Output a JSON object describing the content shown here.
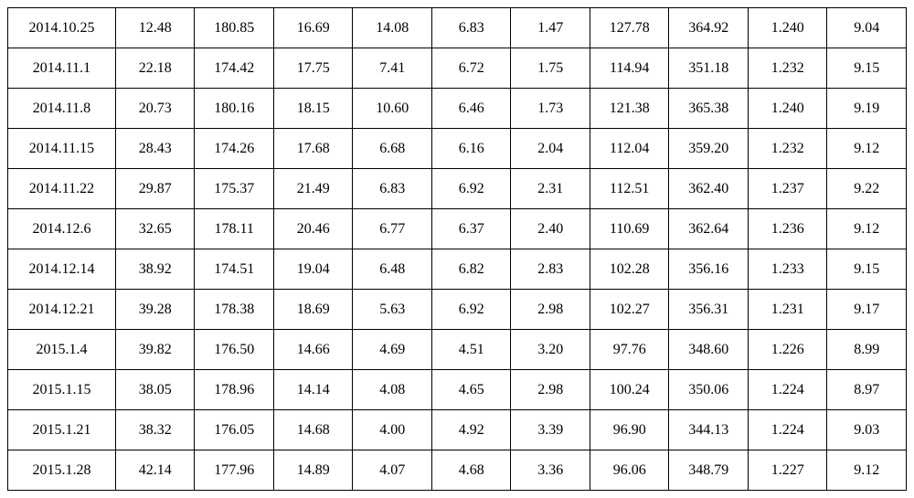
{
  "table": {
    "type": "table",
    "background_color": "#ffffff",
    "border_color": "#000000",
    "text_color": "#000000",
    "font_family": "Times New Roman",
    "font_size": 16,
    "cell_align": "center",
    "columns": 11,
    "column_widths": [
      "12%",
      "8.8%",
      "8.8%",
      "8.8%",
      "8.8%",
      "8.8%",
      "8.8%",
      "8.8%",
      "8.8%",
      "8.8%",
      "8.8%"
    ],
    "rows": [
      [
        "2014.10.25",
        "12.48",
        "180.85",
        "16.69",
        "14.08",
        "6.83",
        "1.47",
        "127.78",
        "364.92",
        "1.240",
        "9.04"
      ],
      [
        "2014.11.1",
        "22.18",
        "174.42",
        "17.75",
        "7.41",
        "6.72",
        "1.75",
        "114.94",
        "351.18",
        "1.232",
        "9.15"
      ],
      [
        "2014.11.8",
        "20.73",
        "180.16",
        "18.15",
        "10.60",
        "6.46",
        "1.73",
        "121.38",
        "365.38",
        "1.240",
        "9.19"
      ],
      [
        "2014.11.15",
        "28.43",
        "174.26",
        "17.68",
        "6.68",
        "6.16",
        "2.04",
        "112.04",
        "359.20",
        "1.232",
        "9.12"
      ],
      [
        "2014.11.22",
        "29.87",
        "175.37",
        "21.49",
        "6.83",
        "6.92",
        "2.31",
        "112.51",
        "362.40",
        "1.237",
        "9.22"
      ],
      [
        "2014.12.6",
        "32.65",
        "178.11",
        "20.46",
        "6.77",
        "6.37",
        "2.40",
        "110.69",
        "362.64",
        "1.236",
        "9.12"
      ],
      [
        "2014.12.14",
        "38.92",
        "174.51",
        "19.04",
        "6.48",
        "6.82",
        "2.83",
        "102.28",
        "356.16",
        "1.233",
        "9.15"
      ],
      [
        "2014.12.21",
        "39.28",
        "178.38",
        "18.69",
        "5.63",
        "6.92",
        "2.98",
        "102.27",
        "356.31",
        "1.231",
        "9.17"
      ],
      [
        "2015.1.4",
        "39.82",
        "176.50",
        "14.66",
        "4.69",
        "4.51",
        "3.20",
        "97.76",
        "348.60",
        "1.226",
        "8.99"
      ],
      [
        "2015.1.15",
        "38.05",
        "178.96",
        "14.14",
        "4.08",
        "4.65",
        "2.98",
        "100.24",
        "350.06",
        "1.224",
        "8.97"
      ],
      [
        "2015.1.21",
        "38.32",
        "176.05",
        "14.68",
        "4.00",
        "4.92",
        "3.39",
        "96.90",
        "344.13",
        "1.224",
        "9.03"
      ],
      [
        "2015.1.28",
        "42.14",
        "177.96",
        "14.89",
        "4.07",
        "4.68",
        "3.36",
        "96.06",
        "348.79",
        "1.227",
        "9.12"
      ]
    ]
  }
}
